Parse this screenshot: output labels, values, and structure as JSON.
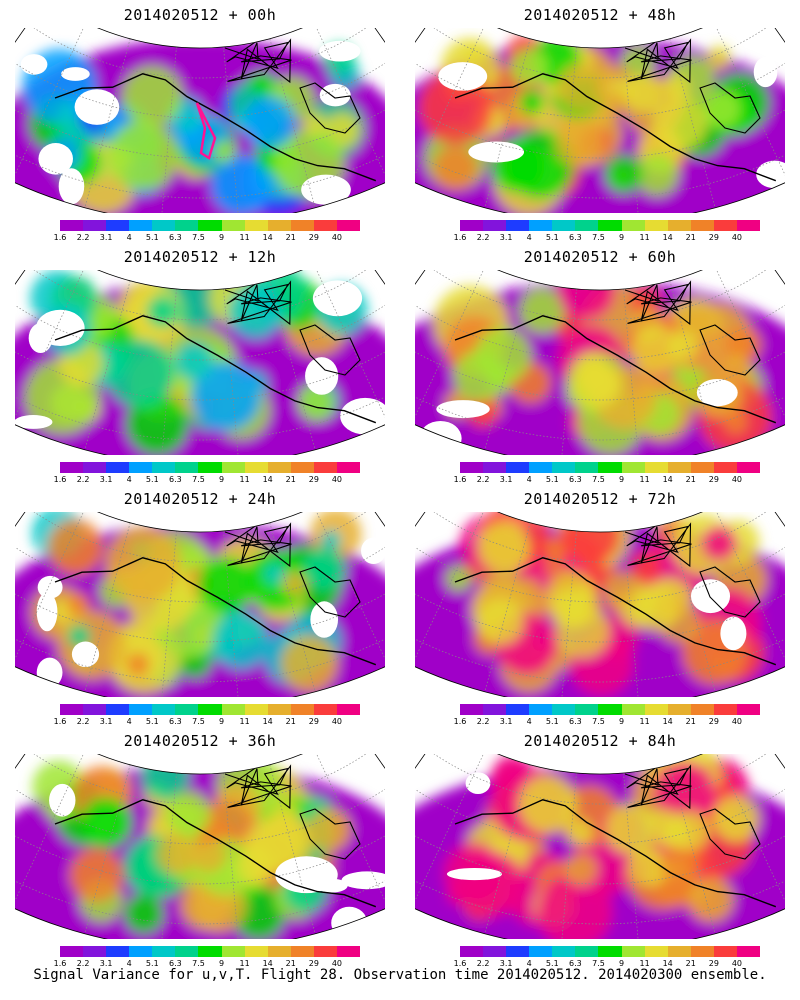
{
  "caption": "Signal Variance for u,v,T. Flight 28. Observation time 2014020512. 2014020300 ensemble.",
  "colorbar": {
    "labels": [
      "1.6",
      "2.2",
      "3.1",
      "4",
      "5.1",
      "6.3",
      "7.5",
      "9",
      "11",
      "14",
      "21",
      "29",
      "40"
    ],
    "colors": [
      "#a000c8",
      "#8214dc",
      "#1e3cff",
      "#00a0ff",
      "#00c8c8",
      "#00d28c",
      "#00dc00",
      "#a0e632",
      "#e6dc32",
      "#e6af2d",
      "#f08228",
      "#fa3c3c",
      "#f00082"
    ]
  },
  "chart_data": [
    {
      "type": "heatmap",
      "title": "2014020512 + 00h",
      "lead_hours": 0,
      "intensity": 0.22,
      "has_flight_track": true
    },
    {
      "type": "heatmap",
      "title": "2014020512 + 48h",
      "lead_hours": 48,
      "intensity": 0.62,
      "has_flight_track": false
    },
    {
      "type": "heatmap",
      "title": "2014020512 + 12h",
      "lead_hours": 12,
      "intensity": 0.36,
      "has_flight_track": false
    },
    {
      "type": "heatmap",
      "title": "2014020512 + 60h",
      "lead_hours": 60,
      "intensity": 0.7,
      "has_flight_track": false
    },
    {
      "type": "heatmap",
      "title": "2014020512 + 24h",
      "lead_hours": 24,
      "intensity": 0.45,
      "has_flight_track": false
    },
    {
      "type": "heatmap",
      "title": "2014020512 + 72h",
      "lead_hours": 72,
      "intensity": 0.78,
      "has_flight_track": false
    },
    {
      "type": "heatmap",
      "title": "2014020512 + 36h",
      "lead_hours": 36,
      "intensity": 0.54,
      "has_flight_track": false
    },
    {
      "type": "heatmap",
      "title": "2014020512 + 84h",
      "lead_hours": 84,
      "intensity": 0.84,
      "has_flight_track": false
    }
  ]
}
